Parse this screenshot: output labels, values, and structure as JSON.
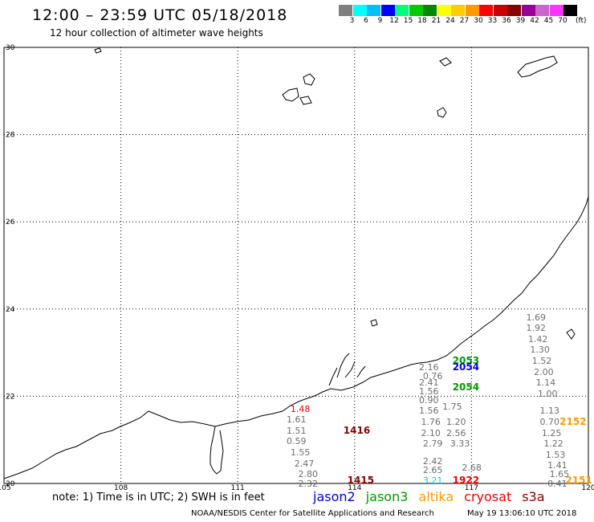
{
  "header": {
    "title": "12:00 – 23:59 UTC 05/18/2018",
    "subtitle": "12 hour collection of altimeter wave heights"
  },
  "scale": {
    "unit": "(ft)",
    "bins": [
      {
        "label": "3",
        "color": "#7f7f7f"
      },
      {
        "label": "6",
        "color": "#00ffff"
      },
      {
        "label": "9",
        "color": "#00bfff"
      },
      {
        "label": "12",
        "color": "#0000ff"
      },
      {
        "label": "15",
        "color": "#00ff7f"
      },
      {
        "label": "18",
        "color": "#00cc00"
      },
      {
        "label": "21",
        "color": "#008800"
      },
      {
        "label": "24",
        "color": "#ffff00"
      },
      {
        "label": "27",
        "color": "#ffcc00"
      },
      {
        "label": "30",
        "color": "#ff9900"
      },
      {
        "label": "33",
        "color": "#ff0000"
      },
      {
        "label": "36",
        "color": "#cc0000"
      },
      {
        "label": "39",
        "color": "#880000"
      },
      {
        "label": "42",
        "color": "#990099"
      },
      {
        "label": "45",
        "color": "#cc66cc"
      },
      {
        "label": "70",
        "color": "#ff33ff"
      },
      {
        "label": "",
        "color": "#000000"
      }
    ]
  },
  "axes": {
    "lat_labels": [
      "30",
      "28",
      "26",
      "24",
      "22",
      "20"
    ],
    "lon_labels": [
      "105",
      "108",
      "111",
      "114",
      "117",
      "120"
    ],
    "lat_range": [
      20,
      30
    ],
    "lon_range": [
      105,
      120
    ]
  },
  "footer": {
    "note": "note: 1) Time is in UTC; 2) SWH is in feet",
    "satellites": [
      {
        "name": "jason2",
        "color": "#0000dd"
      },
      {
        "name": "jason3",
        "color": "#009900"
      },
      {
        "name": "altika",
        "color": "#ff9900"
      },
      {
        "name": "cryosat",
        "color": "#ee0000"
      },
      {
        "name": "s3a",
        "color": "#880000"
      }
    ],
    "credit": "NOAA/NESDIS Center for Satellite Applications and Research",
    "timestamp": "May 19 13:06:10 UTC 2018"
  },
  "passes": [
    {
      "label": "1416",
      "color": "#880000",
      "lon": 114.0,
      "lat": 21.2
    },
    {
      "label": "1415",
      "color": "#880000",
      "lon": 114.1,
      "lat": 20.05
    },
    {
      "label": "2053",
      "color": "#009900",
      "lon": 116.8,
      "lat": 22.8
    },
    {
      "label": "2054",
      "color": "#0000dd",
      "lon": 116.8,
      "lat": 22.65
    },
    {
      "label": "2054",
      "color": "#009900",
      "lon": 116.8,
      "lat": 22.2
    },
    {
      "label": "1922",
      "color": "#ee0000",
      "lon": 116.8,
      "lat": 20.05
    },
    {
      "label": "2152",
      "color": "#ff9900",
      "lon": 119.55,
      "lat": 21.4
    },
    {
      "label": "2151",
      "color": "#ff9900",
      "lon": 119.7,
      "lat": 20.05
    }
  ],
  "wave_heights": [
    {
      "value": "1.48",
      "color": "#ee0000",
      "lon": 112.6,
      "lat": 21.7
    },
    {
      "value": "1.61",
      "lon": 112.5,
      "lat": 21.45
    },
    {
      "value": "1.51",
      "lon": 112.5,
      "lat": 21.2
    },
    {
      "value": "0.59",
      "lon": 112.5,
      "lat": 20.95
    },
    {
      "value": "1.55",
      "lon": 112.6,
      "lat": 20.7
    },
    {
      "value": "2.47",
      "lon": 112.7,
      "lat": 20.45
    },
    {
      "value": "2.80",
      "lon": 112.8,
      "lat": 20.2
    },
    {
      "value": "2.32",
      "lon": 112.8,
      "lat": 19.98
    },
    {
      "value": "2.16",
      "lon": 115.9,
      "lat": 22.65
    },
    {
      "value": "0.76",
      "lon": 116.0,
      "lat": 22.45
    },
    {
      "value": "2.41",
      "lon": 115.9,
      "lat": 22.3
    },
    {
      "value": "1.56",
      "lon": 115.9,
      "lat": 22.1
    },
    {
      "value": "0.90",
      "lon": 115.9,
      "lat": 21.9
    },
    {
      "value": "1.56",
      "lon": 115.9,
      "lat": 21.65
    },
    {
      "value": "1.76",
      "lon": 115.95,
      "lat": 21.4
    },
    {
      "value": "2.10",
      "lon": 115.95,
      "lat": 21.15
    },
    {
      "value": "2.79",
      "lon": 116.0,
      "lat": 20.9
    },
    {
      "value": "2.42",
      "lon": 116.0,
      "lat": 20.5
    },
    {
      "value": "2.65",
      "lon": 116.0,
      "lat": 20.3
    },
    {
      "value": "3.21",
      "color": "#00cccc",
      "lon": 116.0,
      "lat": 20.05
    },
    {
      "value": "1.75",
      "lon": 116.5,
      "lat": 21.75
    },
    {
      "value": "1.20",
      "lon": 116.6,
      "lat": 21.4
    },
    {
      "value": "2.56",
      "lon": 116.6,
      "lat": 21.15
    },
    {
      "value": "3.33",
      "lon": 116.7,
      "lat": 20.9
    },
    {
      "value": "2.68",
      "lon": 117.0,
      "lat": 20.35
    },
    {
      "value": "1.69",
      "lon": 118.65,
      "lat": 23.8
    },
    {
      "value": "1.92",
      "lon": 118.65,
      "lat": 23.55
    },
    {
      "value": "1.42",
      "lon": 118.7,
      "lat": 23.3
    },
    {
      "value": "1.30",
      "lon": 118.75,
      "lat": 23.05
    },
    {
      "value": "1.52",
      "lon": 118.8,
      "lat": 22.8
    },
    {
      "value": "2.00",
      "lon": 118.85,
      "lat": 22.55
    },
    {
      "value": "1.14",
      "lon": 118.9,
      "lat": 22.3
    },
    {
      "value": "1.00",
      "lon": 118.95,
      "lat": 22.05
    },
    {
      "value": "1.13",
      "lon": 119.0,
      "lat": 21.65
    },
    {
      "value": "0.70",
      "lon": 119.0,
      "lat": 21.4
    },
    {
      "value": "1.25",
      "lon": 119.05,
      "lat": 21.15
    },
    {
      "value": "1.22",
      "lon": 119.1,
      "lat": 20.9
    },
    {
      "value": "1.53",
      "lon": 119.15,
      "lat": 20.65
    },
    {
      "value": "1.41",
      "lon": 119.2,
      "lat": 20.4
    },
    {
      "value": "1.65",
      "lon": 119.25,
      "lat": 20.2
    },
    {
      "value": "0.41",
      "lon": 119.2,
      "lat": 19.98
    }
  ]
}
